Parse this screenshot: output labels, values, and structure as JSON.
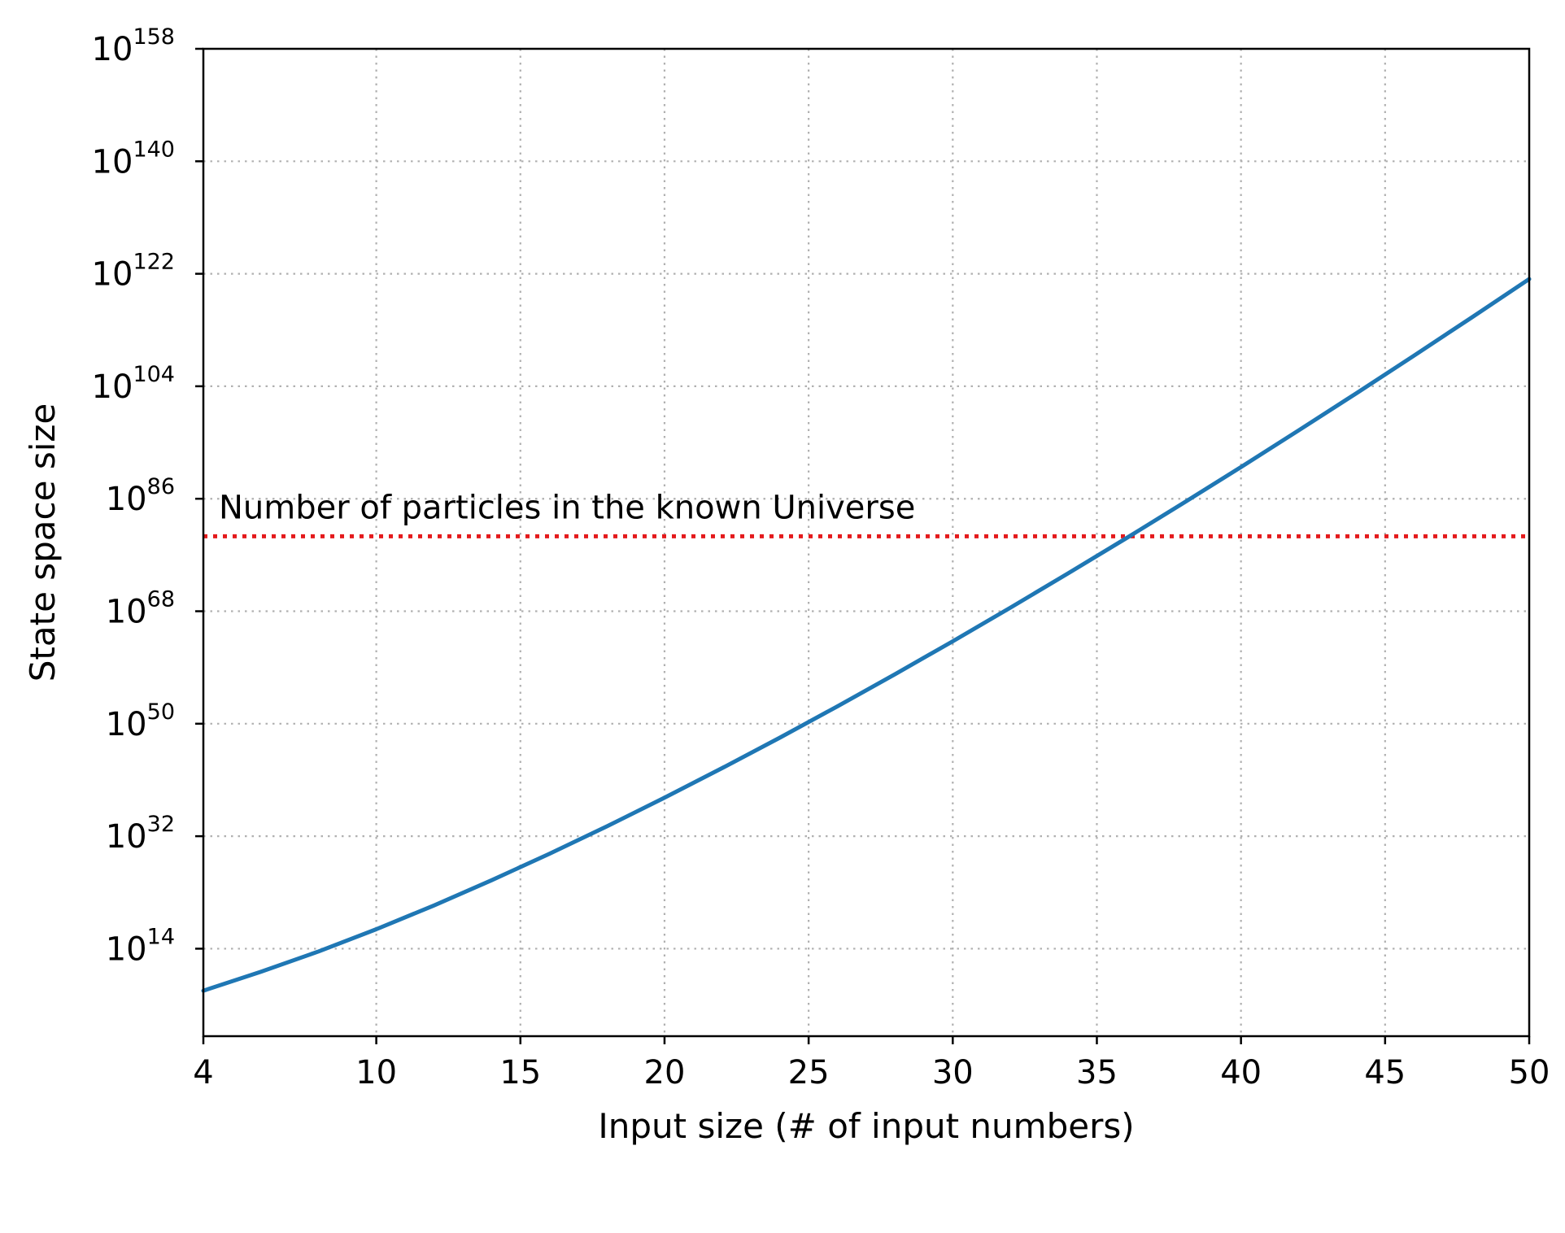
{
  "chart_data": {
    "type": "line",
    "xlabel": "Input size (# of input numbers)",
    "ylabel": "State space size",
    "xlim": [
      4,
      50
    ],
    "ylim_log10": [
      0,
      158
    ],
    "y_scale": "log",
    "grid": true,
    "x_ticks": [
      {
        "value": 4,
        "label": "4"
      },
      {
        "value": 10,
        "label": "10"
      },
      {
        "value": 15,
        "label": "15"
      },
      {
        "value": 20,
        "label": "20"
      },
      {
        "value": 25,
        "label": "25"
      },
      {
        "value": 30,
        "label": "30"
      },
      {
        "value": 35,
        "label": "35"
      },
      {
        "value": 40,
        "label": "40"
      },
      {
        "value": 45,
        "label": "45"
      },
      {
        "value": 50,
        "label": "50"
      }
    ],
    "y_ticks": [
      {
        "exp": 14,
        "base": "10",
        "sup": "14"
      },
      {
        "exp": 32,
        "base": "10",
        "sup": "32"
      },
      {
        "exp": 50,
        "base": "10",
        "sup": "50"
      },
      {
        "exp": 68,
        "base": "10",
        "sup": "68"
      },
      {
        "exp": 86,
        "base": "10",
        "sup": "86"
      },
      {
        "exp": 104,
        "base": "10",
        "sup": "104"
      },
      {
        "exp": 122,
        "base": "10",
        "sup": "122"
      },
      {
        "exp": 140,
        "base": "10",
        "sup": "140"
      },
      {
        "exp": 158,
        "base": "10",
        "sup": "158"
      }
    ],
    "series": [
      {
        "color": "#1f77b4",
        "x": [
          4,
          6,
          8,
          10,
          12,
          14,
          16,
          18,
          20,
          22,
          24,
          26,
          28,
          30,
          32,
          34,
          36,
          38,
          40,
          42,
          44,
          46,
          48,
          50
        ],
        "y_log10": [
          7.28,
          10.31,
          13.56,
          17.11,
          20.92,
          24.95,
          29.17,
          33.58,
          38.16,
          42.9,
          47.77,
          52.79,
          57.93,
          63.19,
          68.57,
          74.05,
          79.63,
          85.31,
          91.07,
          96.93,
          102.87,
          108.89,
          114.99,
          121.16
        ]
      }
    ],
    "reference_line": {
      "label": "Number of particles in the known Universe",
      "y_log10": 80,
      "color": "#e41a1c"
    }
  }
}
